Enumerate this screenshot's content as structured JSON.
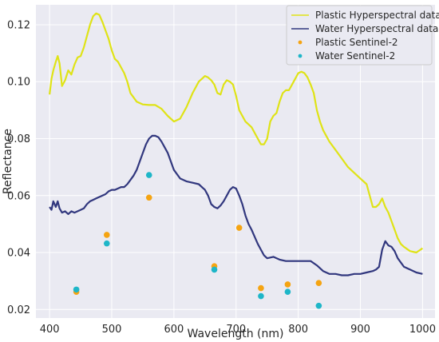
{
  "chart_data": {
    "type": "line",
    "xlabel": "Wavelength (nm)",
    "ylabel": "Reflectance",
    "xlim": [
      378,
      1020
    ],
    "ylim": [
      0.017,
      0.127
    ],
    "x_ticks": [
      400,
      500,
      600,
      700,
      800,
      900,
      1000
    ],
    "y_ticks": [
      0.02,
      0.04,
      0.06,
      0.08,
      0.1,
      0.12
    ],
    "x_tick_labels": [
      "400",
      "500",
      "600",
      "700",
      "800",
      "900",
      "1000"
    ],
    "y_tick_labels": [
      "0.02",
      "0.04",
      "0.06",
      "0.08",
      "0.10",
      "0.12"
    ],
    "grid": true,
    "background": "#eaeaf2",
    "legend_position": "top-right",
    "series": [
      {
        "name": "Plastic Hyperspectral data",
        "kind": "line",
        "color": "#dfe316",
        "x": [
          400,
          403,
          406,
          410,
          413,
          416,
          420,
          425,
          430,
          435,
          440,
          445,
          450,
          455,
          460,
          465,
          470,
          475,
          480,
          485,
          490,
          495,
          500,
          505,
          510,
          515,
          520,
          525,
          530,
          540,
          550,
          560,
          570,
          580,
          590,
          600,
          610,
          620,
          630,
          640,
          650,
          655,
          660,
          665,
          670,
          675,
          680,
          685,
          690,
          695,
          700,
          705,
          710,
          715,
          720,
          725,
          730,
          735,
          740,
          745,
          750,
          755,
          760,
          765,
          770,
          775,
          780,
          785,
          790,
          795,
          800,
          805,
          810,
          815,
          820,
          825,
          830,
          835,
          840,
          850,
          860,
          870,
          880,
          890,
          900,
          910,
          915,
          920,
          925,
          930,
          935,
          940,
          945,
          950,
          955,
          960,
          965,
          970,
          980,
          990,
          1000
        ],
        "values": [
          0.0955,
          0.101,
          0.104,
          0.107,
          0.109,
          0.1065,
          0.0985,
          0.1005,
          0.104,
          0.1025,
          0.106,
          0.1085,
          0.109,
          0.112,
          0.116,
          0.12,
          0.123,
          0.124,
          0.1235,
          0.121,
          0.118,
          0.115,
          0.111,
          0.108,
          0.107,
          0.105,
          0.103,
          0.1,
          0.096,
          0.093,
          0.092,
          0.0918,
          0.0918,
          0.0905,
          0.088,
          0.086,
          0.087,
          0.091,
          0.096,
          0.1,
          0.102,
          0.1015,
          0.1005,
          0.099,
          0.096,
          0.0955,
          0.099,
          0.1005,
          0.1,
          0.099,
          0.095,
          0.09,
          0.088,
          0.086,
          0.085,
          0.084,
          0.082,
          0.08,
          0.078,
          0.078,
          0.08,
          0.086,
          0.088,
          0.089,
          0.093,
          0.096,
          0.097,
          0.097,
          0.099,
          0.101,
          0.103,
          0.1035,
          0.103,
          0.1015,
          0.099,
          0.096,
          0.09,
          0.086,
          0.083,
          0.079,
          0.076,
          0.073,
          0.07,
          0.068,
          0.066,
          0.064,
          0.06,
          0.056,
          0.056,
          0.057,
          0.059,
          0.056,
          0.054,
          0.051,
          0.048,
          0.045,
          0.043,
          0.042,
          0.0405,
          0.04,
          0.0415
        ]
      },
      {
        "name": "Water Hyperspectral data",
        "kind": "line",
        "color": "#31377e",
        "x": [
          400,
          403,
          406,
          410,
          413,
          416,
          420,
          425,
          430,
          435,
          440,
          445,
          450,
          455,
          460,
          465,
          470,
          475,
          480,
          485,
          490,
          495,
          500,
          505,
          510,
          515,
          520,
          525,
          530,
          535,
          540,
          545,
          550,
          555,
          560,
          565,
          570,
          575,
          580,
          585,
          590,
          595,
          600,
          610,
          620,
          630,
          640,
          650,
          655,
          660,
          665,
          670,
          675,
          680,
          685,
          690,
          695,
          700,
          705,
          710,
          715,
          720,
          725,
          730,
          735,
          740,
          745,
          750,
          760,
          770,
          780,
          790,
          800,
          810,
          820,
          830,
          840,
          850,
          860,
          870,
          880,
          890,
          900,
          910,
          920,
          925,
          930,
          935,
          940,
          945,
          950,
          955,
          960,
          970,
          980,
          990,
          1000
        ],
        "values": [
          0.056,
          0.055,
          0.058,
          0.056,
          0.058,
          0.0555,
          0.054,
          0.0545,
          0.0535,
          0.0545,
          0.054,
          0.0545,
          0.055,
          0.0555,
          0.057,
          0.058,
          0.0585,
          0.059,
          0.0595,
          0.06,
          0.0605,
          0.0615,
          0.062,
          0.062,
          0.0625,
          0.063,
          0.063,
          0.064,
          0.0655,
          0.067,
          0.069,
          0.072,
          0.075,
          0.078,
          0.08,
          0.081,
          0.081,
          0.0805,
          0.079,
          0.077,
          0.075,
          0.072,
          0.069,
          0.066,
          0.065,
          0.0645,
          0.064,
          0.062,
          0.06,
          0.057,
          0.056,
          0.0555,
          0.0565,
          0.058,
          0.06,
          0.062,
          0.063,
          0.0625,
          0.06,
          0.057,
          0.053,
          0.05,
          0.048,
          0.0455,
          0.043,
          0.041,
          0.039,
          0.038,
          0.0385,
          0.0375,
          0.037,
          0.037,
          0.037,
          0.037,
          0.037,
          0.0355,
          0.0335,
          0.0325,
          0.0325,
          0.032,
          0.032,
          0.0325,
          0.0325,
          0.033,
          0.0335,
          0.034,
          0.035,
          0.041,
          0.044,
          0.0425,
          0.042,
          0.0405,
          0.038,
          0.035,
          0.034,
          0.033,
          0.0325
        ]
      },
      {
        "name": "Plastic Sentinel-2",
        "kind": "scatter",
        "color": "#f5a412",
        "x": [
          443,
          492,
          560,
          665,
          705,
          740,
          783,
          833
        ],
        "values": [
          0.0262,
          0.0462,
          0.0593,
          0.0352,
          0.0487,
          0.0275,
          0.0288,
          0.0293
        ]
      },
      {
        "name": "Water Sentinel-2",
        "kind": "scatter",
        "color": "#1eb6c8",
        "x": [
          443,
          492,
          560,
          665,
          740,
          783,
          833
        ],
        "values": [
          0.027,
          0.0432,
          0.0672,
          0.034,
          0.0247,
          0.0262,
          0.0213
        ]
      }
    ]
  }
}
